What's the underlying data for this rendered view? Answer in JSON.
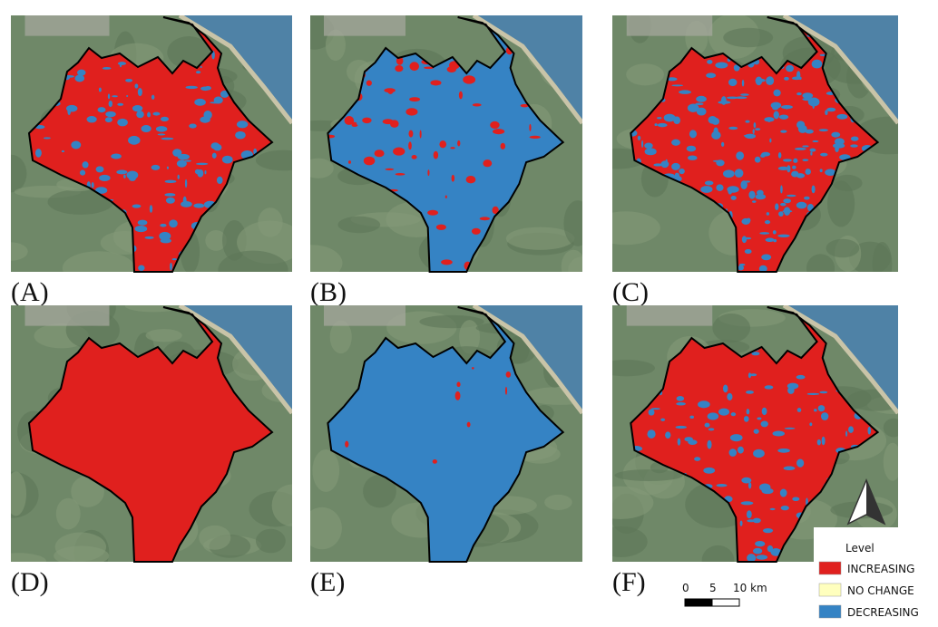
{
  "panels": [
    {
      "label": "(A)",
      "base": "#e0201e",
      "patch": "#3583c4",
      "patches": 260
    },
    {
      "label": "(B)",
      "base": "#3583c4",
      "patch": "#e0201e",
      "patches": 140
    },
    {
      "label": "(C)",
      "base": "#e0201e",
      "patch": "#3583c4",
      "patches": 420
    },
    {
      "label": "(D)",
      "base": "#e0201e",
      "patch": "#3583c4",
      "patches": 0
    },
    {
      "label": "(E)",
      "base": "#3583c4",
      "patch": "#e0201e",
      "patches": 14
    },
    {
      "label": "(F)",
      "base": "#e0201e",
      "patch": "#3583c4",
      "patches": 200
    }
  ],
  "legend": {
    "title": "Level",
    "items": [
      {
        "label": "INCREASING",
        "color": "#e0201e"
      },
      {
        "label": "NO CHANGE",
        "color": "#ffffbe"
      },
      {
        "label": "DECREASING",
        "color": "#3583c4"
      }
    ]
  },
  "scale_bar": {
    "labels": [
      "0",
      "5",
      "10 km"
    ]
  }
}
